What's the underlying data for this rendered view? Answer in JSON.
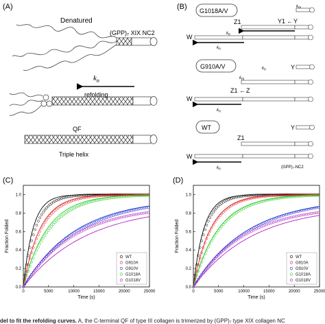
{
  "panels": {
    "A": {
      "label": "(A)",
      "denatured": "Denatured",
      "construct": "(GPP)₇ XIX NC2",
      "kn": "k",
      "kn_sub": "n",
      "refolding": "refolding",
      "qf": "QF",
      "triple_helix": "Triple helix"
    },
    "B": {
      "label": "(B)",
      "mut1": "G1018A/V",
      "mut2": "G910A/V",
      "wt": "WT",
      "Y": "Y",
      "Z": "Z",
      "Z1": "Z1",
      "Y1": "Y1",
      "W": "W",
      "k": "k",
      "m": "m",
      "n": "n",
      "construct": "(GPP)₇-NC2"
    }
  },
  "caption": {
    "lead": "del to fit the refolding curves.",
    "text": " A, the C-terminal QF of type III collagen is trimerized by (GPP)₇ type XIX collagen NC"
  },
  "chart_data": [
    {
      "type": "scatter",
      "panel_label": "(C)",
      "xlabel": "Time (s)",
      "ylabel": "Fraction Folded",
      "xlim": [
        0,
        25000
      ],
      "ylim": [
        0,
        1.1
      ],
      "xticks": [
        0,
        5000,
        10000,
        15000,
        20000,
        25000
      ],
      "yticks": [
        0.0,
        0.2,
        0.4,
        0.6,
        0.8,
        1.0
      ],
      "legend_position": "bottom-right",
      "series": [
        {
          "name": "WT",
          "color": "#000000",
          "rate": 0.00042,
          "fit_rate": 0.00052,
          "plateau": 1.0
        },
        {
          "name": "G910A",
          "color": "#e02020",
          "rate": 0.00028,
          "fit_rate": 0.0003,
          "plateau": 1.0
        },
        {
          "name": "G910V",
          "color": "#2030d0",
          "rate": 9.2e-05,
          "fit_rate": 9.8e-05,
          "plateau": 0.96
        },
        {
          "name": "G1018A",
          "color": "#22cc22",
          "rate": 0.00019,
          "fit_rate": 0.00021,
          "plateau": 1.0
        },
        {
          "name": "G1018V",
          "color": "#b020c0",
          "rate": 0.0001,
          "fit_rate": 8e-05,
          "plateau": 0.88
        }
      ]
    },
    {
      "type": "scatter",
      "panel_label": "(D)",
      "xlabel": "Time (s)",
      "ylabel": "Fraction Folded",
      "xlim": [
        0,
        25000
      ],
      "ylim": [
        0,
        1.1
      ],
      "xticks": [
        0,
        5000,
        10000,
        15000,
        20000,
        25000
      ],
      "yticks": [
        0.0,
        0.2,
        0.4,
        0.6,
        0.8,
        1.0
      ],
      "legend_position": "bottom-right",
      "series": [
        {
          "name": "WT",
          "color": "#000000",
          "rate": 0.00042,
          "fit_rate": 0.00048,
          "plateau": 1.0
        },
        {
          "name": "G910A",
          "color": "#e02020",
          "rate": 0.00028,
          "fit_rate": 0.00029,
          "plateau": 1.0
        },
        {
          "name": "G910V",
          "color": "#2030d0",
          "rate": 9.2e-05,
          "fit_rate": 9.5e-05,
          "plateau": 0.96
        },
        {
          "name": "G1018A",
          "color": "#22cc22",
          "rate": 0.00019,
          "fit_rate": 0.0002,
          "plateau": 1.0
        },
        {
          "name": "G1018V",
          "color": "#b020c0",
          "rate": 0.0001,
          "fit_rate": 8.5e-05,
          "plateau": 0.88
        }
      ]
    }
  ]
}
